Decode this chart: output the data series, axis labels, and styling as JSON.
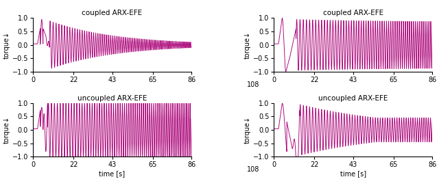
{
  "titles": [
    "coupled ARX-EFE",
    "coupled ARX-EFE",
    "uncoupled ARX-EFE",
    "uncoupled ARX-EFE"
  ],
  "ylabel": "torque↓",
  "xlabel": "time [s]",
  "xlim": [
    0,
    86
  ],
  "ylim": [
    -1.0,
    1.0
  ],
  "xticks": [
    0,
    22,
    43,
    65,
    86
  ],
  "yticks": [
    -1.0,
    -0.5,
    0.0,
    0.5,
    1.0
  ],
  "line_color": "#aa0077",
  "line_width": 0.65,
  "n_points": 3000,
  "figsize": [
    6.4,
    2.78
  ],
  "dpi": 100,
  "label_108": "108"
}
